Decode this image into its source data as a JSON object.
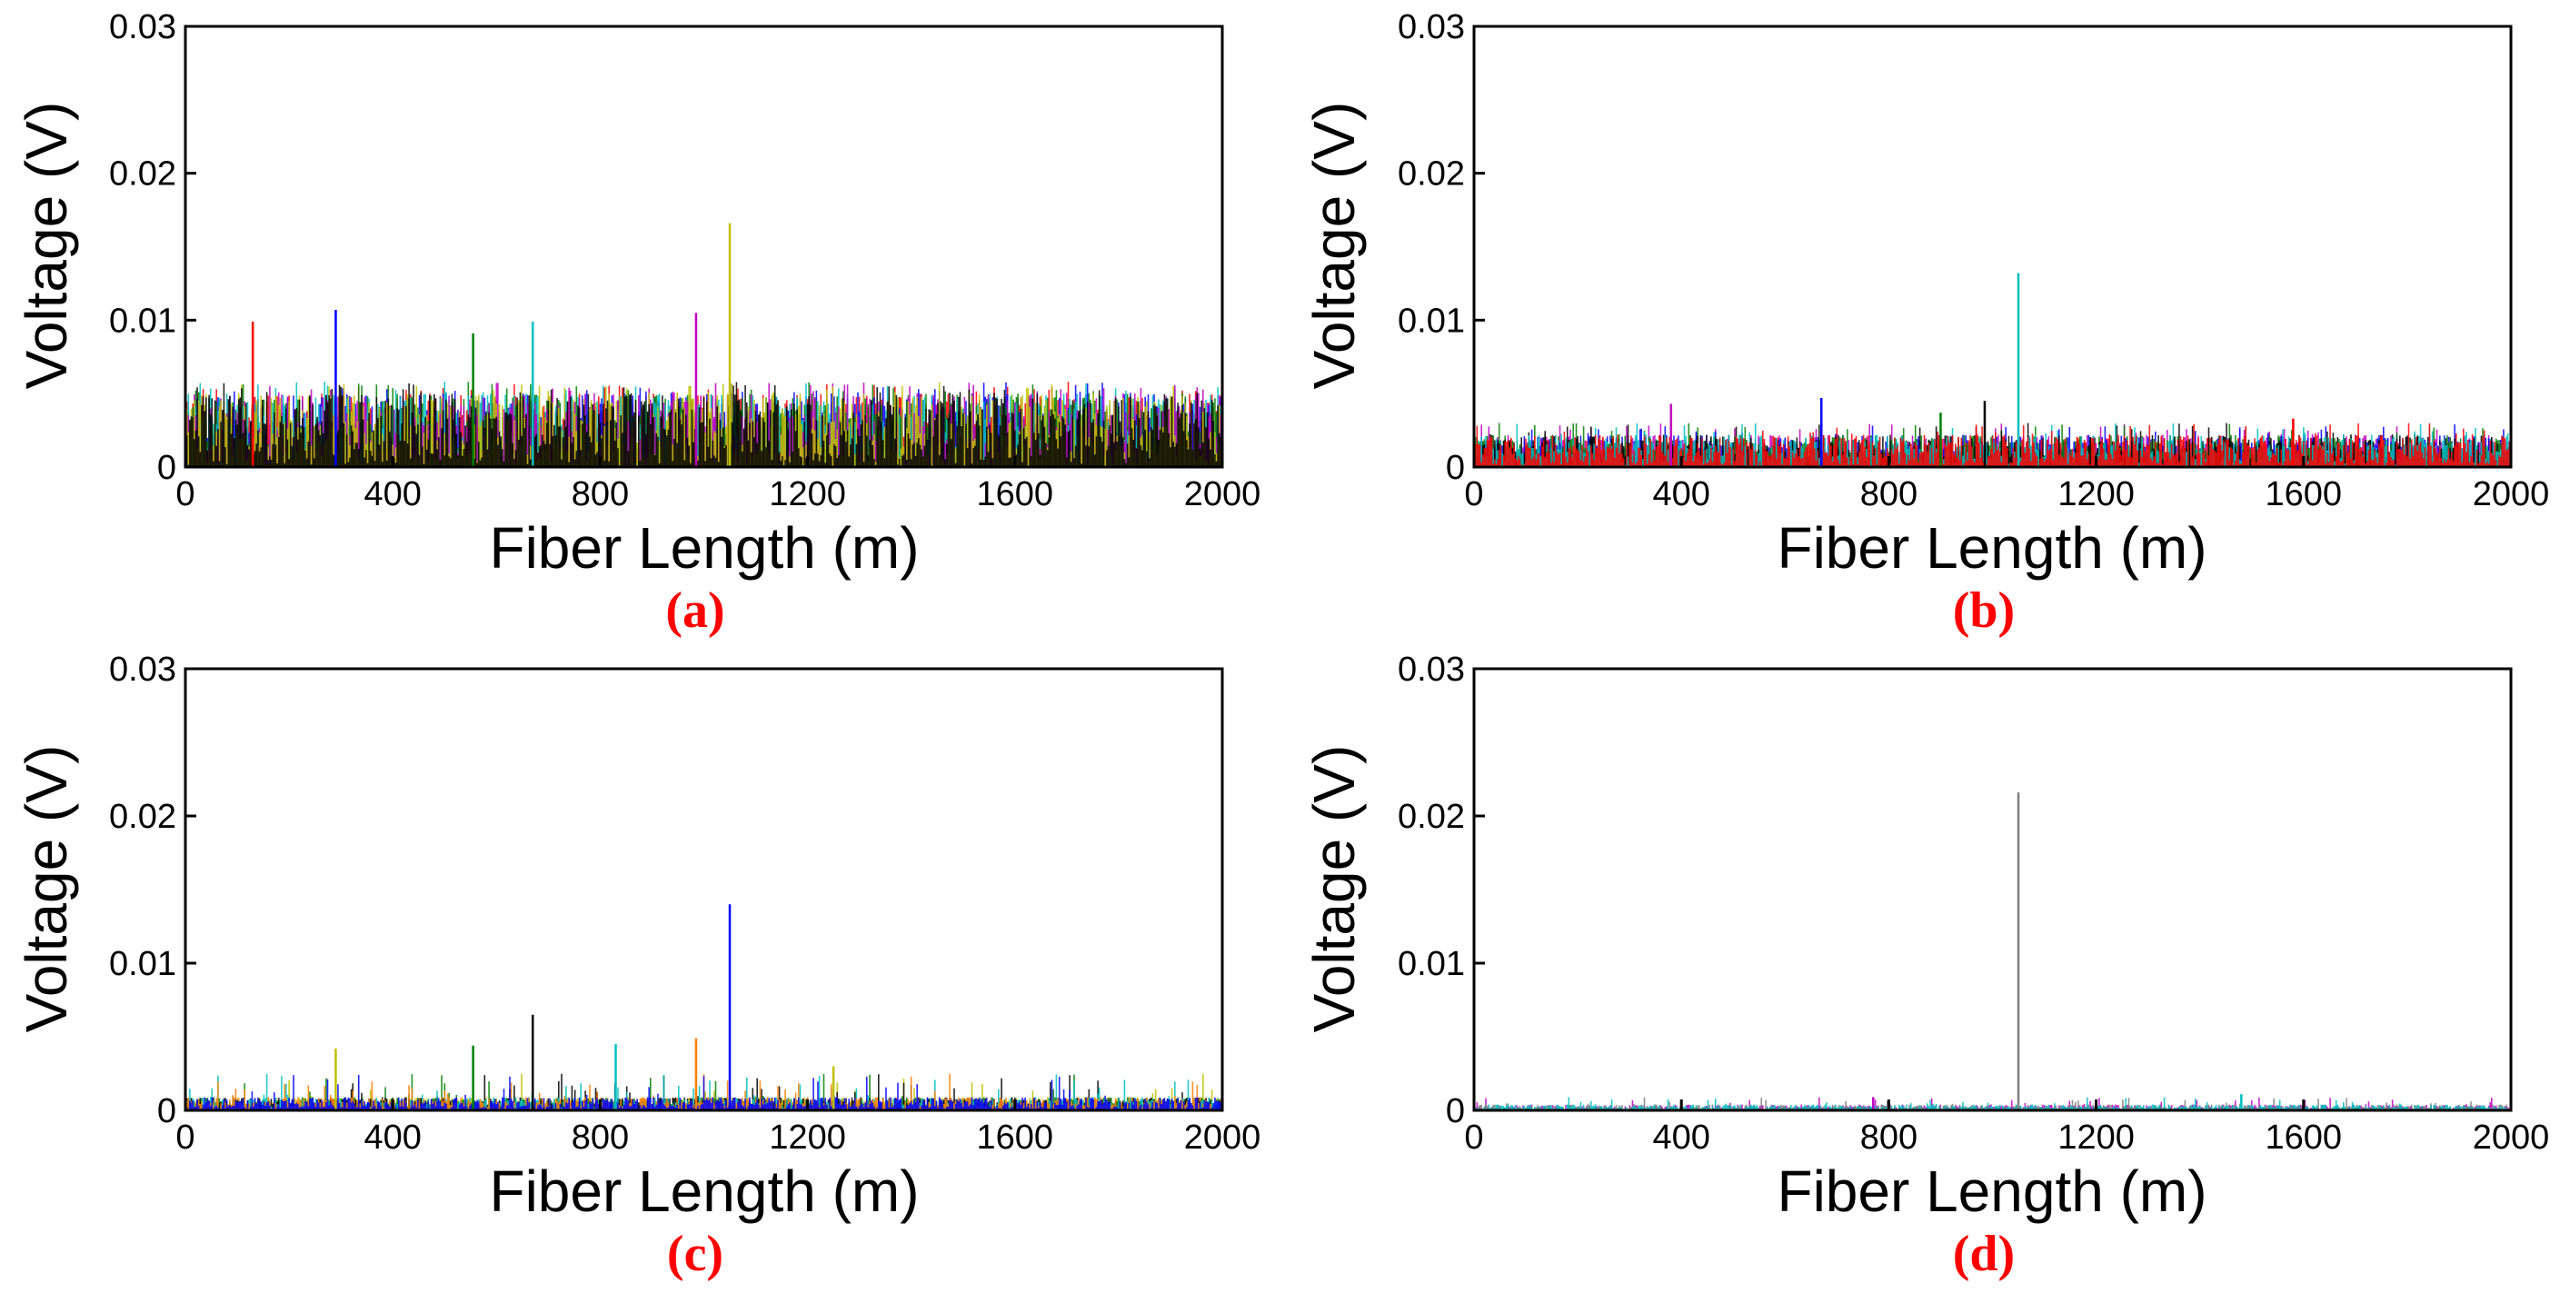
{
  "colors": {
    "caption": "#ff0000",
    "palette": [
      "#ff0000",
      "#0000ff",
      "#008000",
      "#00bfbf",
      "#bf00bf",
      "#bfbf00",
      "#000000",
      "#ff7f00",
      "#7f7f7f"
    ]
  },
  "chart_data": [
    {
      "type": "line",
      "caption": "(a)",
      "xlabel": "Fiber Length (m)",
      "ylabel": "Voltage (V)",
      "xlim": [
        0,
        2000
      ],
      "ylim": [
        0,
        0.03
      ],
      "xticks": [
        0,
        400,
        800,
        1200,
        1600,
        2000
      ],
      "xtick_labels": [
        "0",
        "400",
        "800",
        "1200",
        "1600",
        "2000"
      ],
      "yticks": [
        0,
        0.01,
        0.02,
        0.03
      ],
      "ytick_labels": [
        "0",
        "0.01",
        "0.02",
        "0.03"
      ],
      "noise_floor": 0.005,
      "noise_max": 0.0058,
      "series_colors": [
        "#ff0000",
        "#0000ff",
        "#008000",
        "#00bfbf",
        "#bf00bf",
        "#bfbf00",
        "#000000"
      ],
      "peaks": [
        {
          "x": 130,
          "y": 0.0099
        },
        {
          "x": 290,
          "y": 0.0107
        },
        {
          "x": 555,
          "y": 0.0091
        },
        {
          "x": 670,
          "y": 0.0099
        },
        {
          "x": 985,
          "y": 0.0105
        },
        {
          "x": 1050,
          "y": 0.0166
        }
      ]
    },
    {
      "type": "line",
      "caption": "(b)",
      "xlabel": "Fiber Length (m)",
      "ylabel": "Voltage (V)",
      "xlim": [
        0,
        2000
      ],
      "ylim": [
        0,
        0.03
      ],
      "xticks": [
        0,
        400,
        800,
        1200,
        1600,
        2000
      ],
      "xtick_labels": [
        "0",
        "400",
        "800",
        "1200",
        "1600",
        "2000"
      ],
      "yticks": [
        0,
        0.01,
        0.02,
        0.03
      ],
      "ytick_labels": [
        "0",
        "0.01",
        "0.02",
        "0.03"
      ],
      "noise_floor": 0.0022,
      "noise_max": 0.003,
      "series_colors": [
        "#bf00bf",
        "#0000ff",
        "#008000",
        "#000000",
        "#00bfbf",
        "#ff0000"
      ],
      "peaks": [
        {
          "x": 380,
          "y": 0.0043
        },
        {
          "x": 670,
          "y": 0.0047
        },
        {
          "x": 900,
          "y": 0.0037
        },
        {
          "x": 985,
          "y": 0.0045
        },
        {
          "x": 1050,
          "y": 0.0132
        },
        {
          "x": 1580,
          "y": 0.0033
        }
      ]
    },
    {
      "type": "line",
      "caption": "(c)",
      "xlabel": "Fiber Length (m)",
      "ylabel": "Voltage (V)",
      "xlim": [
        0,
        2000
      ],
      "ylim": [
        0,
        0.03
      ],
      "xticks": [
        0,
        400,
        800,
        1200,
        1600,
        2000
      ],
      "xtick_labels": [
        "0",
        "400",
        "800",
        "1200",
        "1600",
        "2000"
      ],
      "yticks": [
        0,
        0.01,
        0.02,
        0.03
      ],
      "ytick_labels": [
        "0",
        "0.01",
        "0.02",
        "0.03"
      ],
      "noise_floor": 0.0009,
      "noise_max": 0.0025,
      "series_colors": [
        "#bfbf00",
        "#008000",
        "#000000",
        "#00bfbf",
        "#ff7f00",
        "#0000ff"
      ],
      "peaks": [
        {
          "x": 290,
          "y": 0.0042
        },
        {
          "x": 555,
          "y": 0.0044
        },
        {
          "x": 670,
          "y": 0.0065
        },
        {
          "x": 830,
          "y": 0.0045
        },
        {
          "x": 985,
          "y": 0.0049
        },
        {
          "x": 1050,
          "y": 0.014
        },
        {
          "x": 1250,
          "y": 0.003
        }
      ]
    },
    {
      "type": "line",
      "caption": "(d)",
      "xlabel": "Fiber Length (m)",
      "ylabel": "Voltage (V)",
      "xlim": [
        0,
        2000
      ],
      "ylim": [
        0,
        0.03
      ],
      "xticks": [
        0,
        400,
        800,
        1200,
        1600,
        2000
      ],
      "xtick_labels": [
        "0",
        "400",
        "800",
        "1200",
        "1600",
        "2000"
      ],
      "yticks": [
        0,
        0.01,
        0.02,
        0.03
      ],
      "ytick_labels": [
        "0",
        "0.01",
        "0.02",
        "0.03"
      ],
      "noise_floor": 0.0004,
      "noise_max": 0.0009,
      "series_colors": [
        "#bf00bf",
        "#7f7f7f",
        "#00bfbf"
      ],
      "peaks": [
        {
          "x": 770,
          "y": 0.0009
        },
        {
          "x": 1050,
          "y": 0.0216
        },
        {
          "x": 1480,
          "y": 0.0011
        }
      ]
    }
  ]
}
